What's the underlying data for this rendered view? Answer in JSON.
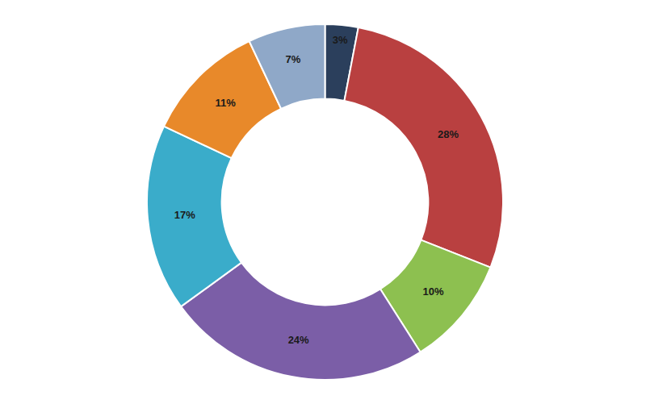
{
  "chart_data": {
    "type": "pie",
    "values": [
      3,
      28,
      10,
      24,
      17,
      11,
      7
    ],
    "value_labels": [
      "3%",
      "28%",
      "10%",
      "24%",
      "17%",
      "11%",
      "7%"
    ],
    "colors": [
      "#2B3F5C",
      "#B94040",
      "#8DC050",
      "#7B5EA7",
      "#3AACCA",
      "#E8892A",
      "#8FA8C8"
    ],
    "data_labels": true
  }
}
